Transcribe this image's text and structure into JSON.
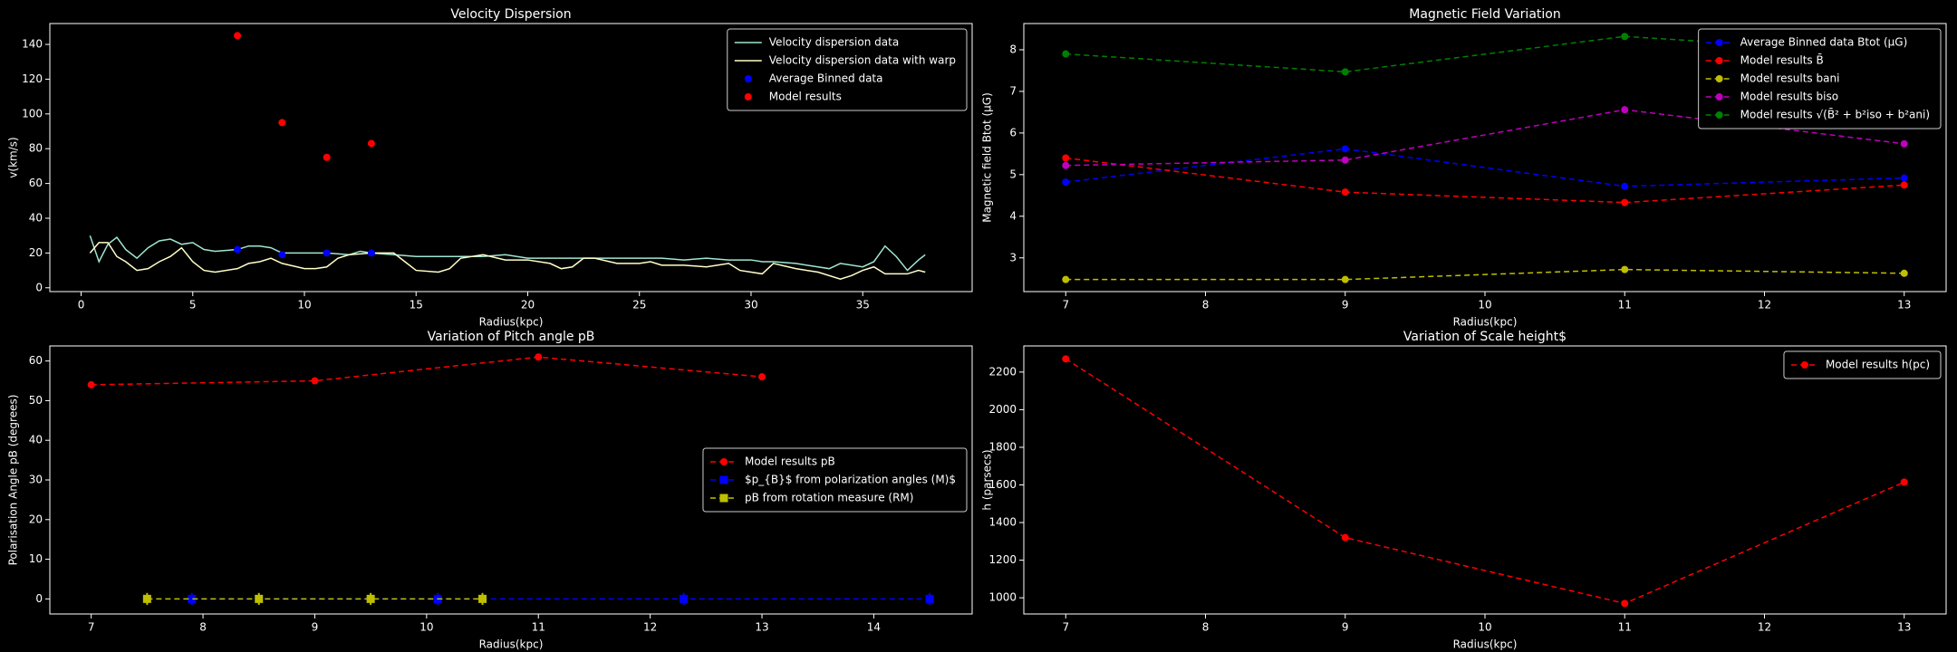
{
  "chart_data": [
    {
      "type": "line",
      "title": "Velocity Dispersion",
      "xlabel": "Radius(kpc)",
      "ylabel": "v(km/s)",
      "xlim": [
        -1.4,
        39.9
      ],
      "ylim": [
        -2.2,
        152
      ],
      "xticks": [
        0,
        5,
        10,
        15,
        20,
        25,
        30,
        35
      ],
      "yticks": [
        0,
        20,
        40,
        60,
        80,
        100,
        120,
        140
      ],
      "legend": "upper right",
      "series": [
        {
          "name": "Velocity dispersion data",
          "color": "#a0e6d2",
          "linestyle": "solid",
          "marker": "none",
          "x": [
            0.4,
            0.8,
            1.2,
            1.6,
            2,
            2.5,
            3,
            3.5,
            4,
            4.5,
            5,
            5.5,
            6,
            7,
            7.5,
            8,
            8.5,
            9,
            10,
            11,
            12,
            12.5,
            13,
            14,
            15,
            16,
            17,
            18,
            19,
            20,
            21,
            22,
            23,
            24,
            25,
            26,
            27,
            28,
            29,
            30,
            30.5,
            31,
            32,
            33,
            33.5,
            34,
            35,
            35.5,
            36,
            36.5,
            37,
            37.5,
            37.8
          ],
          "values": [
            30,
            15,
            25,
            29,
            22,
            17,
            23,
            27,
            28,
            25,
            26,
            22,
            21,
            22,
            24,
            24,
            23,
            20,
            20,
            20,
            19,
            21,
            20,
            19,
            18,
            18,
            18,
            18,
            19,
            17,
            17,
            17,
            17,
            17,
            17,
            17,
            16,
            17,
            16,
            16,
            15,
            15,
            14,
            12,
            11,
            14,
            12,
            15,
            24,
            18,
            10,
            16,
            19
          ]
        },
        {
          "name": "Velocity dispersion data with warp",
          "color": "#ffffc8",
          "linestyle": "solid",
          "marker": "none",
          "x": [
            0.4,
            0.8,
            1.2,
            1.6,
            2,
            2.5,
            3,
            3.5,
            4,
            4.5,
            5,
            5.5,
            6,
            7,
            7.5,
            8,
            8.5,
            9,
            10,
            10.5,
            11,
            11.5,
            12,
            13,
            14,
            14.5,
            15,
            16,
            16.5,
            17,
            18,
            19,
            20,
            21,
            21.5,
            22,
            22.5,
            23,
            24,
            25,
            25.5,
            26,
            27,
            28,
            29,
            29.5,
            30,
            30.5,
            31,
            32,
            33,
            34,
            34.5,
            35,
            35.5,
            36,
            37,
            37.5,
            37.8
          ],
          "values": [
            20,
            26,
            26,
            18,
            15,
            10,
            11,
            15,
            18,
            23,
            15,
            10,
            9,
            11,
            14,
            15,
            17,
            14,
            11,
            11,
            12,
            17,
            19,
            20,
            20,
            15,
            10,
            9,
            11,
            17,
            19,
            16,
            16,
            14,
            11,
            12,
            17,
            17,
            14,
            14,
            15,
            13,
            13,
            12,
            14,
            10,
            9,
            8,
            14,
            11,
            9,
            5,
            7,
            10,
            12,
            8,
            8,
            10,
            9
          ]
        },
        {
          "name": "Average Binned data",
          "color": "#0000ff",
          "linestyle": "none",
          "marker": "circle",
          "x": [
            7,
            9,
            11,
            13
          ],
          "values": [
            22,
            19,
            20,
            20
          ]
        },
        {
          "name": "Model results",
          "color": "#ff0000",
          "linestyle": "none",
          "marker": "circle",
          "x": [
            7,
            9,
            11,
            13
          ],
          "values": [
            145,
            95,
            75,
            83
          ]
        }
      ]
    },
    {
      "type": "line",
      "title": "Magnetic Field Variation",
      "xlabel": "Radius(kpc)",
      "ylabel": "Magnetic field Btot (μG)",
      "xlim": [
        6.7,
        13.3
      ],
      "ylim": [
        2.19,
        8.63
      ],
      "xticks": [
        7,
        8,
        9,
        10,
        11,
        12,
        13
      ],
      "yticks": [
        3,
        4,
        5,
        6,
        7,
        8
      ],
      "legend": "upper right",
      "series": [
        {
          "name": "Average Binned data Btot (μG)",
          "color": "#0000ff",
          "linestyle": "dashed",
          "marker": "circle",
          "x": [
            7,
            9,
            11,
            13
          ],
          "values": [
            4.82,
            5.62,
            4.72,
            4.92
          ]
        },
        {
          "name": "Model results B̄",
          "color": "#ff0000",
          "linestyle": "dashed",
          "marker": "circle",
          "x": [
            7,
            9,
            11,
            13
          ],
          "values": [
            5.4,
            4.58,
            4.33,
            4.75
          ]
        },
        {
          "name": "Model results bani",
          "color": "#bfbf00",
          "linestyle": "dashed",
          "marker": "circle",
          "x": [
            7,
            9,
            11,
            13
          ],
          "values": [
            2.48,
            2.48,
            2.72,
            2.63
          ]
        },
        {
          "name": "Model results biso",
          "color": "#bf00bf",
          "linestyle": "dashed",
          "marker": "circle",
          "x": [
            7,
            9,
            11,
            13
          ],
          "values": [
            5.22,
            5.35,
            6.56,
            5.74
          ]
        },
        {
          "name": "Model results √(B̄² + b²iso + b²ani)",
          "color": "#008000",
          "linestyle": "dashed",
          "marker": "circle",
          "x": [
            7,
            9,
            11,
            13
          ],
          "values": [
            7.9,
            7.47,
            8.32,
            7.9
          ]
        }
      ]
    },
    {
      "type": "line",
      "title": "Variation of Pitch angle pB",
      "xlabel": "Radius(kpc)",
      "ylabel": "Polarisation Angle pB (degrees)",
      "xlim": [
        6.63,
        14.88
      ],
      "ylim": [
        -3.8,
        63.8
      ],
      "xticks": [
        7,
        8,
        9,
        10,
        11,
        12,
        13,
        14
      ],
      "yticks": [
        0,
        10,
        20,
        30,
        40,
        50,
        60
      ],
      "legend": "center right",
      "series": [
        {
          "name": "Model results pB",
          "color": "#ff0000",
          "linestyle": "dashed",
          "marker": "circle",
          "x": [
            7,
            9,
            11,
            13
          ],
          "values": [
            54,
            55,
            61,
            56
          ]
        },
        {
          "name": "$p_{B}$ from polarization angles (M)$",
          "color": "#0000ff",
          "linestyle": "dashed",
          "marker": "square",
          "x": [
            7.9,
            10.1,
            12.3,
            14.5
          ],
          "values": [
            0,
            0,
            0,
            0
          ],
          "errors": [
            1.5,
            1.5,
            1.5,
            1.5
          ]
        },
        {
          "name": "pB from rotation measure (RM)",
          "color": "#bfbf00",
          "linestyle": "dashed",
          "marker": "square",
          "x": [
            7.5,
            8.5,
            9.5,
            10.5
          ],
          "values": [
            0,
            0,
            0,
            0
          ],
          "errors": [
            1.5,
            1.5,
            1.5,
            1.5
          ]
        }
      ]
    },
    {
      "type": "line",
      "title": "Variation of Scale height$",
      "xlabel": "Radius(kpc)",
      "ylabel": "h (parsecs)",
      "xlim": [
        6.7,
        13.3
      ],
      "ylim": [
        914,
        2339
      ],
      "xticks": [
        7,
        8,
        9,
        10,
        11,
        12,
        13
      ],
      "yticks": [
        1000,
        1200,
        1400,
        1600,
        1800,
        2000,
        2200
      ],
      "legend": "upper right",
      "series": [
        {
          "name": "Model results h(pc)",
          "color": "#ff0000",
          "linestyle": "dashed",
          "marker": "circle",
          "x": [
            7,
            9,
            11,
            13
          ],
          "values": [
            2270,
            1320,
            970,
            1615
          ]
        }
      ]
    }
  ]
}
